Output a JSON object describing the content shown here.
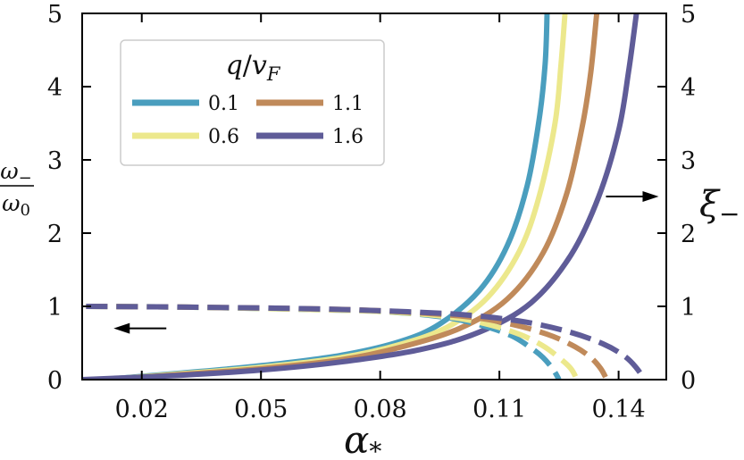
{
  "chart_data": {
    "type": "line",
    "xlabel": "α*",
    "ylabel_left": "ω−/ω0",
    "ylabel_right": "ξ−",
    "xlim": [
      0.005,
      0.152
    ],
    "ylim": [
      0,
      5
    ],
    "x_ticks": [
      0.02,
      0.05,
      0.08,
      0.11,
      0.14
    ],
    "x_tick_labels": [
      "0.02",
      "0.05",
      "0.08",
      "0.11",
      "0.14"
    ],
    "y_ticks": [
      0,
      1,
      2,
      3,
      4,
      5
    ],
    "y_tick_labels": [
      "0",
      "1",
      "2",
      "3",
      "4",
      "5"
    ],
    "legend": {
      "title": "q/vF",
      "placement": "top-left",
      "columns": 2
    },
    "series": [
      {
        "name": "0.1",
        "color": "#4a9ebe",
        "xi_solid": {
          "axis": "right",
          "x": [
            0.01,
            0.03,
            0.05,
            0.07,
            0.085,
            0.095,
            0.105,
            0.112,
            0.117,
            0.12,
            0.1215,
            0.122
          ],
          "y": [
            0.0,
            0.09,
            0.19,
            0.33,
            0.52,
            0.76,
            1.22,
            1.83,
            2.65,
            3.55,
            4.3,
            5.0
          ]
        },
        "omega_dashed": {
          "axis": "left",
          "x": [
            0.006,
            0.03,
            0.06,
            0.08,
            0.095,
            0.105,
            0.113,
            0.118,
            0.121,
            0.1235,
            0.125
          ],
          "y": [
            1.0,
            0.99,
            0.96,
            0.93,
            0.86,
            0.75,
            0.6,
            0.43,
            0.3,
            0.14,
            0.0
          ]
        }
      },
      {
        "name": "0.6",
        "color": "#ece88c",
        "xi_solid": {
          "axis": "right",
          "x": [
            0.01,
            0.03,
            0.05,
            0.07,
            0.085,
            0.097,
            0.107,
            0.115,
            0.12,
            0.124,
            0.1255,
            0.1265
          ],
          "y": [
            0.0,
            0.08,
            0.17,
            0.3,
            0.48,
            0.72,
            1.12,
            1.75,
            2.5,
            3.5,
            4.3,
            5.0
          ]
        },
        "omega_dashed": {
          "axis": "left",
          "x": [
            0.006,
            0.03,
            0.06,
            0.08,
            0.095,
            0.106,
            0.115,
            0.121,
            0.125,
            0.128,
            0.1295
          ],
          "y": [
            1.0,
            0.99,
            0.96,
            0.93,
            0.87,
            0.77,
            0.62,
            0.46,
            0.3,
            0.15,
            0.0
          ]
        }
      },
      {
        "name": "1.1",
        "color": "#c08a5a",
        "xi_solid": {
          "axis": "right",
          "x": [
            0.01,
            0.03,
            0.05,
            0.07,
            0.085,
            0.1,
            0.112,
            0.121,
            0.127,
            0.131,
            0.133,
            0.1345
          ],
          "y": [
            0.0,
            0.07,
            0.15,
            0.27,
            0.44,
            0.7,
            1.1,
            1.73,
            2.55,
            3.5,
            4.2,
            5.0
          ]
        },
        "omega_dashed": {
          "axis": "left",
          "x": [
            0.006,
            0.03,
            0.06,
            0.08,
            0.1,
            0.112,
            0.122,
            0.129,
            0.133,
            0.1355,
            0.137
          ],
          "y": [
            1.0,
            0.99,
            0.97,
            0.94,
            0.87,
            0.77,
            0.62,
            0.45,
            0.3,
            0.15,
            0.0
          ]
        }
      },
      {
        "name": "1.6",
        "color": "#5f5c98",
        "xi_solid": {
          "axis": "right",
          "x": [
            0.005,
            0.03,
            0.05,
            0.07,
            0.09,
            0.105,
            0.118,
            0.128,
            0.135,
            0.14,
            0.1425,
            0.1445
          ],
          "y": [
            0.0,
            0.06,
            0.13,
            0.24,
            0.41,
            0.65,
            1.05,
            1.7,
            2.5,
            3.4,
            4.2,
            5.0
          ]
        },
        "omega_dashed": {
          "axis": "left",
          "x": [
            0.006,
            0.03,
            0.06,
            0.08,
            0.1,
            0.115,
            0.127,
            0.136,
            0.1415,
            0.1445,
            0.1465
          ],
          "y": [
            1.0,
            0.99,
            0.97,
            0.94,
            0.89,
            0.8,
            0.66,
            0.49,
            0.32,
            0.16,
            0.0
          ]
        }
      }
    ],
    "annotations": [
      {
        "type": "arrow",
        "direction": "left",
        "points_to": "left-axis",
        "at": {
          "x": 0.02,
          "y": 0.7
        }
      },
      {
        "type": "arrow",
        "direction": "right",
        "points_to": "right-axis",
        "at": {
          "x": 0.143,
          "y": 2.5
        }
      }
    ]
  }
}
